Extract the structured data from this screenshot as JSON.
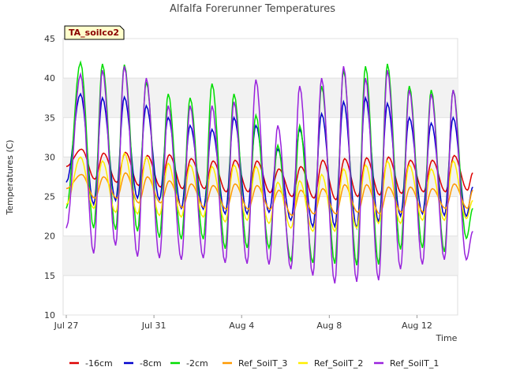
{
  "chart_data": {
    "type": "line",
    "title": "Alfalfa Forerunner Temperatures",
    "xlabel": "Time",
    "ylabel": "Temperatures (C)",
    "badge": "TA_soilco2",
    "ylim": [
      10,
      45
    ],
    "y_ticks": [
      10,
      15,
      20,
      25,
      30,
      35,
      40,
      45
    ],
    "xlim": [
      "2021-07-27",
      "2021-08-14"
    ],
    "x_ticks": [
      {
        "date": "2021-07-27",
        "label": "Jul 27"
      },
      {
        "date": "2021-07-31",
        "label": "Jul 31"
      },
      {
        "date": "2021-08-04",
        "label": "Aug 4"
      },
      {
        "date": "2021-08-08",
        "label": "Aug 8"
      },
      {
        "date": "2021-08-12",
        "label": "Aug 12"
      }
    ],
    "grid": "horizontal bands",
    "legend_position": "bottom",
    "peak_dates": [
      "2021-07-27",
      "2021-07-28",
      "2021-07-29",
      "2021-07-30",
      "2021-07-31",
      "2021-08-01",
      "2021-08-02",
      "2021-08-03",
      "2021-08-04",
      "2021-08-05",
      "2021-08-06",
      "2021-08-07",
      "2021-08-08",
      "2021-08-09",
      "2021-08-10",
      "2021-08-11",
      "2021-08-12",
      "2021-08-13"
    ],
    "series": [
      {
        "name": "-16cm",
        "color": "#dd0000",
        "width": 1.5,
        "start": 28.8,
        "end": 28.0,
        "maxima": [
          31.0,
          30.5,
          30.6,
          30.2,
          30.3,
          29.8,
          29.5,
          29.6,
          29.5,
          28.5,
          28.8,
          29.6,
          29.8,
          29.9,
          30.0,
          29.6,
          29.6,
          30.2
        ],
        "minima": [
          27.2,
          26.8,
          26.4,
          26.2,
          26.0,
          26.0,
          25.6,
          25.6,
          25.5,
          25.0,
          24.8,
          24.6,
          25.0,
          25.2,
          25.4,
          25.6,
          25.6,
          25.8
        ]
      },
      {
        "name": "-8cm",
        "color": "#0000cc",
        "width": 1.5,
        "start": 26.8,
        "end": 26.2,
        "maxima": [
          38.0,
          37.5,
          37.6,
          36.5,
          35.0,
          34.0,
          33.5,
          35.0,
          34.0,
          31.0,
          33.5,
          35.5,
          37.0,
          37.5,
          36.8,
          35.0,
          34.3,
          35.0
        ],
        "minima": [
          24.0,
          24.5,
          24.8,
          24.6,
          23.5,
          23.4,
          22.8,
          22.8,
          23.0,
          22.0,
          21.2,
          21.2,
          21.0,
          21.8,
          22.5,
          22.8,
          22.6,
          22.5
        ]
      },
      {
        "name": "-2cm",
        "color": "#00dd00",
        "width": 1.5,
        "start": 23.5,
        "end": 23.5,
        "maxima": [
          42.0,
          41.8,
          41.7,
          39.5,
          38.0,
          37.5,
          39.3,
          38.0,
          35.3,
          31.5,
          34.0,
          39.0,
          41.0,
          41.5,
          41.8,
          39.0,
          38.5,
          38.5
        ],
        "minima": [
          21.0,
          20.8,
          20.6,
          19.8,
          19.6,
          19.6,
          18.4,
          18.5,
          18.5,
          16.9,
          16.6,
          16.5,
          16.3,
          16.4,
          18.3,
          18.5,
          18.0,
          19.7
        ]
      },
      {
        "name": "Ref_SoilT_3",
        "color": "#ff9900",
        "width": 1.5,
        "start": 26.0,
        "end": 25.8,
        "maxima": [
          27.8,
          27.5,
          28.0,
          27.5,
          27.0,
          26.6,
          26.4,
          26.6,
          26.4,
          25.8,
          25.8,
          26.0,
          26.5,
          26.5,
          26.2,
          26.2,
          26.0,
          26.6
        ],
        "minima": [
          24.8,
          24.8,
          24.2,
          24.2,
          23.6,
          23.6,
          23.4,
          23.4,
          23.4,
          22.6,
          22.8,
          22.8,
          23.0,
          22.8,
          23.0,
          23.0,
          23.5,
          23.5
        ]
      },
      {
        "name": "Ref_SoilT_2",
        "color": "#ffee00",
        "width": 1.5,
        "start": 24.0,
        "end": 24.5,
        "maxima": [
          30.0,
          29.5,
          30.5,
          30.0,
          29.2,
          29.0,
          28.8,
          29.0,
          28.8,
          26.8,
          27.0,
          27.8,
          28.5,
          29.0,
          29.5,
          29.0,
          28.5,
          29.5
        ],
        "minima": [
          23.5,
          23.0,
          22.8,
          22.6,
          22.4,
          22.4,
          21.8,
          22.0,
          21.6,
          21.0,
          20.6,
          20.6,
          21.0,
          21.6,
          21.6,
          22.0,
          22.0,
          22.2
        ]
      },
      {
        "name": "Ref_SoilT_1",
        "color": "#9922dd",
        "width": 1.5,
        "start": 21.0,
        "end": 20.6,
        "maxima": [
          40.5,
          41.0,
          41.5,
          40.0,
          36.5,
          36.5,
          36.5,
          37.0,
          39.8,
          34.0,
          39.0,
          40.0,
          41.5,
          40.0,
          41.0,
          38.5,
          38.0,
          38.5
        ],
        "minima": [
          17.8,
          18.8,
          17.4,
          17.2,
          17.0,
          17.2,
          16.6,
          16.5,
          16.4,
          15.8,
          15.0,
          14.0,
          14.2,
          14.4,
          15.8,
          16.4,
          17.0,
          17.0
        ]
      }
    ]
  }
}
